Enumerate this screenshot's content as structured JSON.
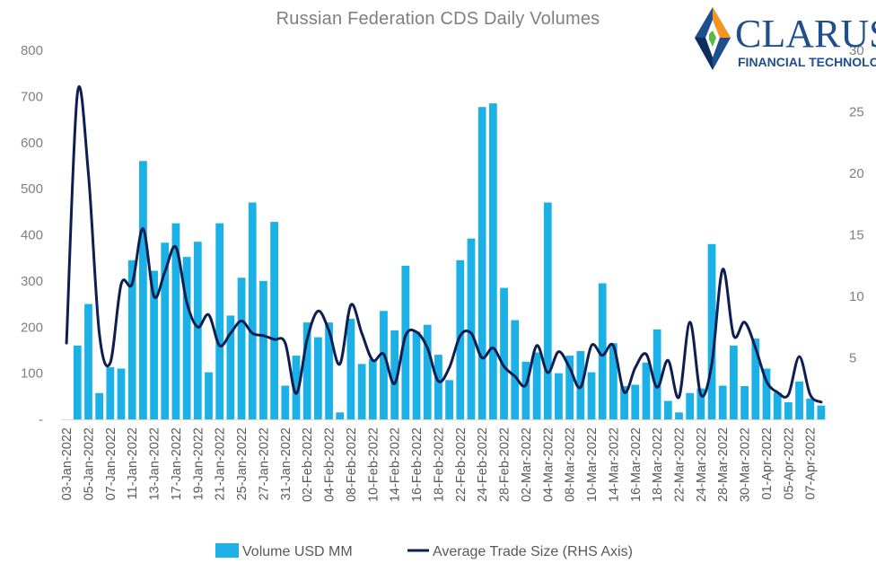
{
  "chart_data": {
    "type": "bar",
    "title": "Russian Federation CDS Daily Volumes",
    "colors": {
      "bar": "#1BB1E7",
      "line": "#0E1E50",
      "axis_text": "#7f7f7f"
    },
    "left_axis": {
      "ylim": [
        0,
        800
      ],
      "ticks": [
        "800",
        "700",
        "600",
        "500",
        "400",
        "300",
        "200",
        "100",
        "-"
      ],
      "tick_values": [
        800,
        700,
        600,
        500,
        400,
        300,
        200,
        100,
        0
      ]
    },
    "right_axis": {
      "ylim": [
        0,
        30
      ],
      "ticks": [
        "30",
        "25",
        "20",
        "15",
        "10",
        "5"
      ],
      "tick_values": [
        30,
        25,
        20,
        15,
        10,
        5
      ]
    },
    "x_tick_labels": [
      "03-Jan-2022",
      "05-Jan-2022",
      "07-Jan-2022",
      "11-Jan-2022",
      "13-Jan-2022",
      "17-Jan-2022",
      "19-Jan-2022",
      "21-Jan-2022",
      "25-Jan-2022",
      "27-Jan-2022",
      "31-Jan-2022",
      "02-Feb-2022",
      "04-Feb-2022",
      "08-Feb-2022",
      "10-Feb-2022",
      "14-Feb-2022",
      "16-Feb-2022",
      "18-Feb-2022",
      "22-Feb-2022",
      "24-Feb-2022",
      "28-Feb-2022",
      "02-Mar-2022",
      "04-Mar-2022",
      "08-Mar-2022",
      "10-Mar-2022",
      "14-Mar-2022",
      "16-Mar-2022",
      "18-Mar-2022",
      "22-Mar-2022",
      "24-Mar-2022",
      "28-Mar-2022",
      "30-Mar-2022",
      "01-Apr-2022",
      "05-Apr-2022",
      "07-Apr-2022"
    ],
    "volumes": [
      0,
      160,
      250,
      57,
      113,
      110,
      345,
      560,
      322,
      383,
      425,
      352,
      385,
      102,
      425,
      225,
      307,
      470,
      300,
      428,
      73,
      138,
      210,
      178,
      210,
      15,
      218,
      120,
      130,
      235,
      193,
      333,
      190,
      205,
      140,
      85,
      345,
      392,
      677,
      685,
      285,
      215,
      125,
      145,
      470,
      100,
      138,
      148,
      102,
      295,
      165,
      72,
      75,
      123,
      195,
      40,
      15,
      57,
      67,
      380,
      73,
      160,
      72,
      175,
      110,
      58,
      37,
      82,
      45,
      30
    ],
    "avg_trade_size": [
      6.2,
      26.5,
      20,
      7,
      4.6,
      11,
      11,
      15.5,
      10,
      12,
      14,
      9.5,
      7.5,
      8.5,
      6,
      7,
      8,
      7,
      6.8,
      6.5,
      6.2,
      2.1,
      6.5,
      8.8,
      7.2,
      4.5,
      9.3,
      7,
      4.8,
      5.3,
      2.9,
      6.8,
      7.1,
      5.8,
      3.1,
      4.2,
      6.8,
      7,
      5,
      5.8,
      4.3,
      3.5,
      2.8,
      6,
      3.8,
      5.5,
      4.2,
      2.6,
      6,
      5.2,
      6,
      2.2,
      4.2,
      5.3,
      2.6,
      4.8,
      1.8,
      7.9,
      2,
      4.5,
      12.2,
      6.8,
      7.9,
      5.8,
      3.1,
      2.2,
      2,
      5.1,
      2,
      1.4
    ],
    "legend": {
      "bar_label": "Volume USD MM",
      "line_label": "Average Trade Size (RHS Axis)",
      "placement": "bottom-center"
    }
  },
  "logo": {
    "name": "CLARUS",
    "tagline": "FINANCIAL TECHNOLOGY",
    "icon": "clarus-diamond-icon"
  }
}
